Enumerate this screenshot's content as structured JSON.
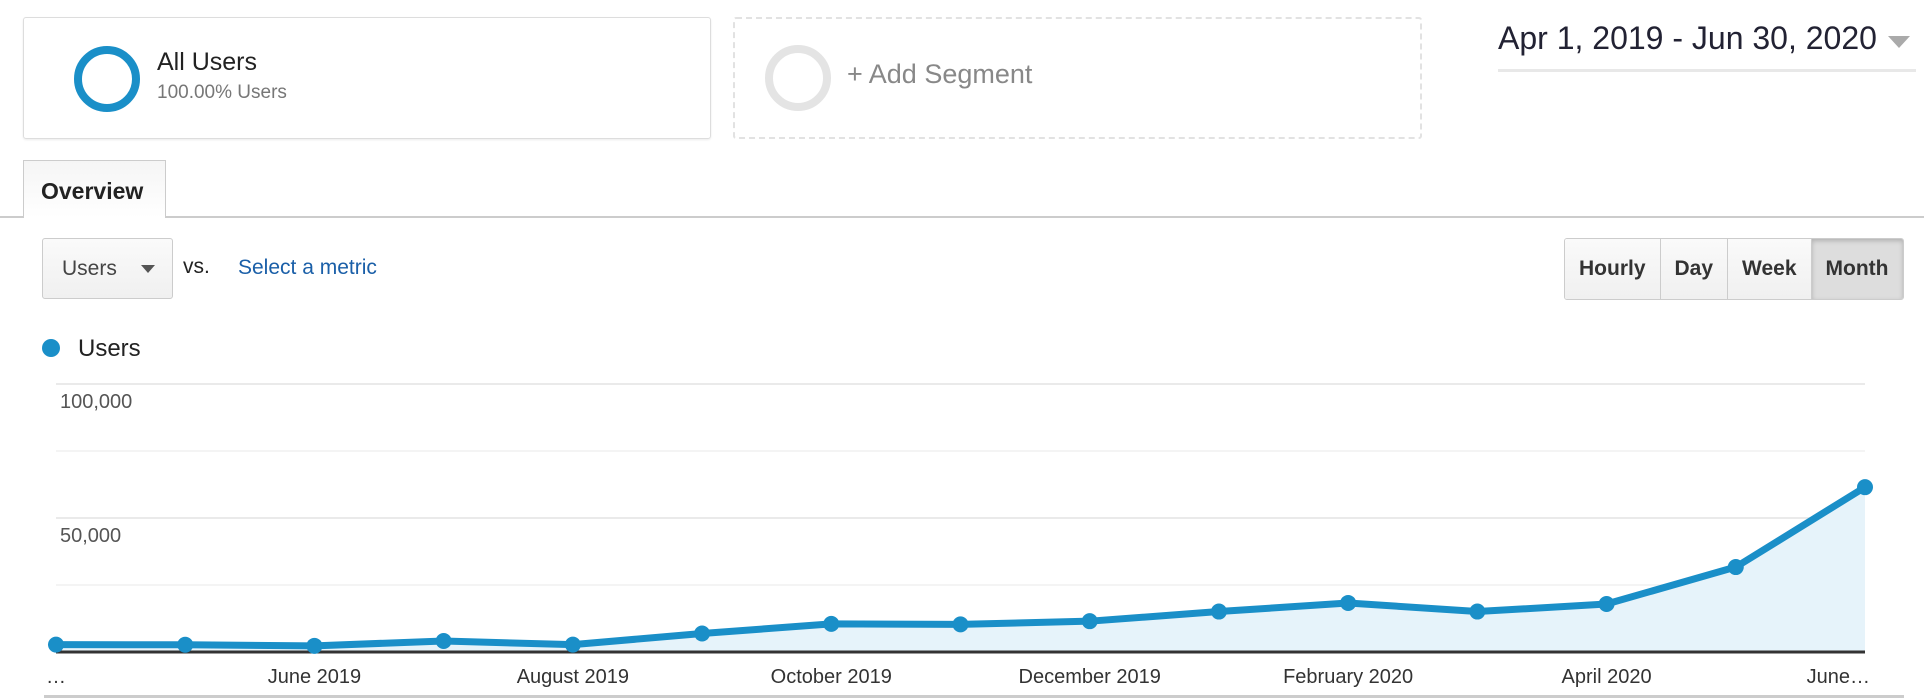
{
  "segments": [
    {
      "title": "All Users",
      "subtitle": "100.00% Users"
    },
    {
      "add_label": "+ Add Segment"
    }
  ],
  "date_range": "Apr 1, 2019 - Jun 30, 2020",
  "tabs": [
    {
      "label": "Overview",
      "active": true
    }
  ],
  "metric_select": {
    "value": "Users",
    "vs": "vs.",
    "select_metric": "Select a metric"
  },
  "granularity": [
    {
      "label": "Hourly"
    },
    {
      "label": "Day"
    },
    {
      "label": "Week"
    },
    {
      "label": "Month",
      "active": true
    }
  ],
  "colors": {
    "series": "#1a8fc8",
    "fill": "#e6f3fa",
    "link": "#1a5fa8"
  },
  "chart_data": {
    "type": "area",
    "legend": "top-left",
    "series": [
      {
        "name": "Users",
        "values": [
          2750,
          2700,
          2300,
          4100,
          2750,
          6900,
          10500,
          10300,
          11500,
          15100,
          18300,
          15100,
          17900,
          31700,
          61500
        ]
      }
    ],
    "x": [
      "Apr 2019",
      "May 2019",
      "Jun 2019",
      "Jul 2019",
      "Aug 2019",
      "Sep 2019",
      "Oct 2019",
      "Nov 2019",
      "Dec 2019",
      "Jan 2020",
      "Feb 2020",
      "Mar 2020",
      "Apr 2020",
      "May 2020",
      "Jun 2020"
    ],
    "x_tick_labels": [
      "…",
      "June 2019",
      "August 2019",
      "October 2019",
      "December 2019",
      "February 2020",
      "April 2020",
      "June…"
    ],
    "y_tick_labels": [
      "100,000",
      "50,000"
    ],
    "ylim": [
      0,
      100000
    ],
    "grid": true
  }
}
